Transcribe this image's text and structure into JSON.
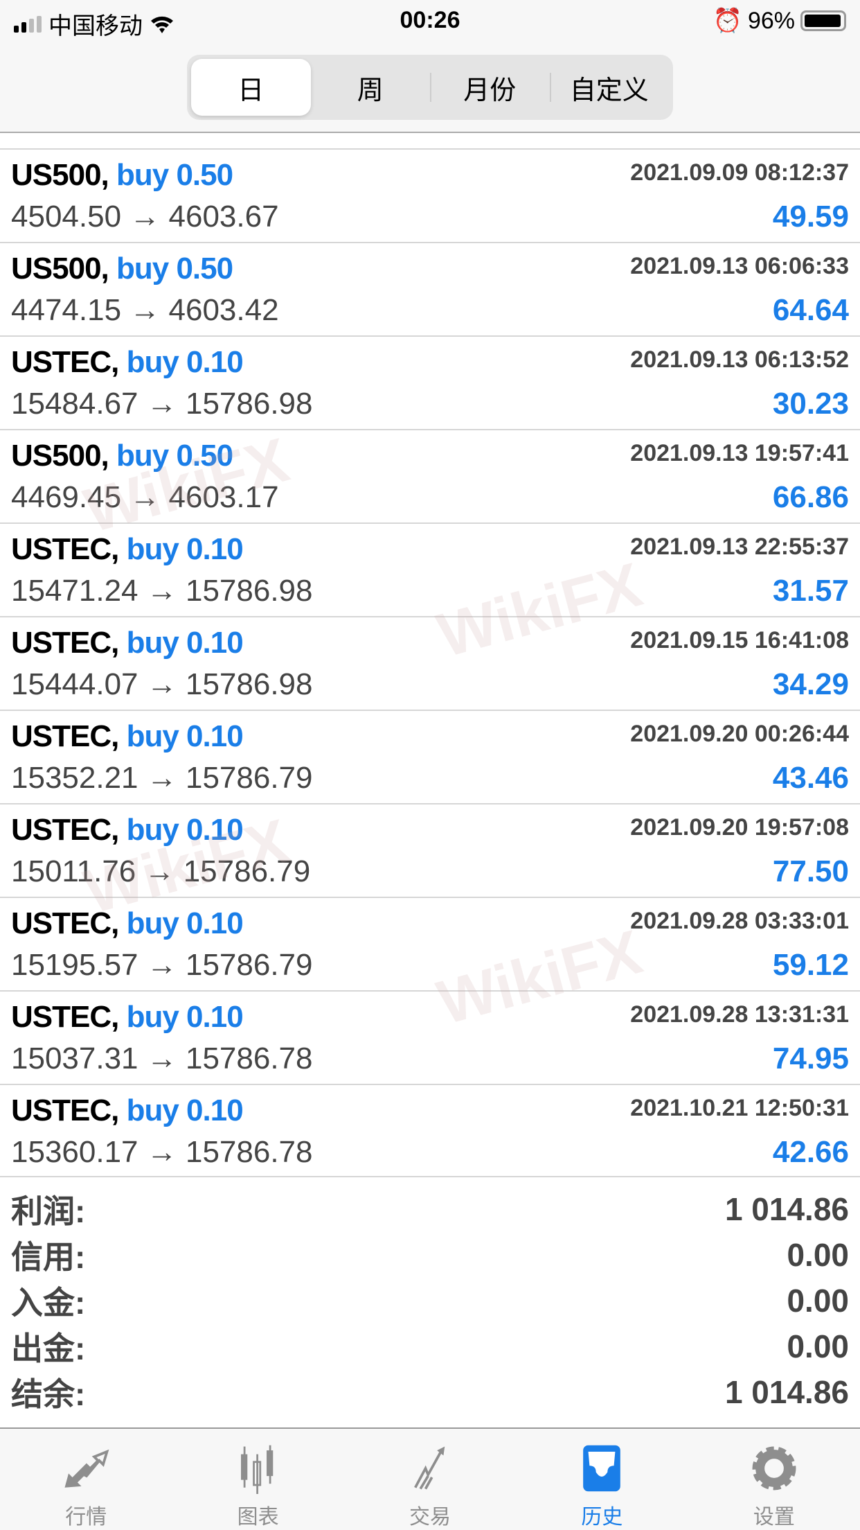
{
  "status_bar": {
    "carrier": "中国移动",
    "time": "00:26",
    "battery": "96%",
    "battery_level": 0.96
  },
  "segments": [
    {
      "label": "日",
      "active": true
    },
    {
      "label": "周"
    },
    {
      "label": "月份"
    },
    {
      "label": "自定义"
    }
  ],
  "trades": [
    {
      "symbol": "US500,",
      "action": "buy 0.50",
      "prices": "4504.50 → 4603.67",
      "date": "2021.09.09 08:12:37",
      "profit": "49.59"
    },
    {
      "symbol": "US500,",
      "action": "buy 0.50",
      "prices": "4474.15 → 4603.42",
      "date": "2021.09.13 06:06:33",
      "profit": "64.64"
    },
    {
      "symbol": "USTEC,",
      "action": "buy 0.10",
      "prices": "15484.67 → 15786.98",
      "date": "2021.09.13 06:13:52",
      "profit": "30.23"
    },
    {
      "symbol": "US500,",
      "action": "buy 0.50",
      "prices": "4469.45 → 4603.17",
      "date": "2021.09.13 19:57:41",
      "profit": "66.86"
    },
    {
      "symbol": "USTEC,",
      "action": "buy 0.10",
      "prices": "15471.24 → 15786.98",
      "date": "2021.09.13 22:55:37",
      "profit": "31.57"
    },
    {
      "symbol": "USTEC,",
      "action": "buy 0.10",
      "prices": "15444.07 → 15786.98",
      "date": "2021.09.15 16:41:08",
      "profit": "34.29"
    },
    {
      "symbol": "USTEC,",
      "action": "buy 0.10",
      "prices": "15352.21 → 15786.79",
      "date": "2021.09.20 00:26:44",
      "profit": "43.46"
    },
    {
      "symbol": "USTEC,",
      "action": "buy 0.10",
      "prices": "15011.76 → 15786.79",
      "date": "2021.09.20 19:57:08",
      "profit": "77.50"
    },
    {
      "symbol": "USTEC,",
      "action": "buy 0.10",
      "prices": "15195.57 → 15786.79",
      "date": "2021.09.28 03:33:01",
      "profit": "59.12"
    },
    {
      "symbol": "USTEC,",
      "action": "buy 0.10",
      "prices": "15037.31 → 15786.78",
      "date": "2021.09.28 13:31:31",
      "profit": "74.95"
    },
    {
      "symbol": "USTEC,",
      "action": "buy 0.10",
      "prices": "15360.17 → 15786.78",
      "date": "2021.10.21 12:50:31",
      "profit": "42.66"
    }
  ],
  "summary": [
    {
      "label": "利润:",
      "value": "1 014.86"
    },
    {
      "label": "信用:",
      "value": "0.00"
    },
    {
      "label": "入金:",
      "value": "0.00"
    },
    {
      "label": "出金:",
      "value": "0.00"
    },
    {
      "label": "结余:",
      "value": "1 014.86"
    }
  ],
  "tabbar": [
    {
      "label": "行情",
      "icon": "quotes-arrows-icon"
    },
    {
      "label": "图表",
      "icon": "candlestick-chart-icon"
    },
    {
      "label": "交易",
      "icon": "trade-trend-icon"
    },
    {
      "label": "历史",
      "icon": "history-inbox-icon",
      "active": true
    },
    {
      "label": "设置",
      "icon": "gear-icon"
    }
  ],
  "watermark": "WikiFX",
  "colors": {
    "accent": "#1a7ee8",
    "text_gray": "#444444"
  }
}
